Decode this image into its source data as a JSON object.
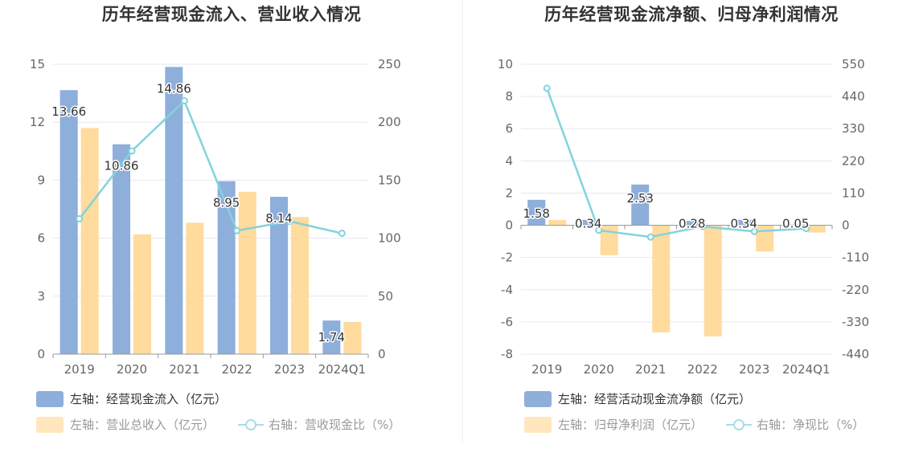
{
  "colors": {
    "bar_blue": "#8eaedb",
    "bar_yellow": "#ffdb9e",
    "line_cyan": "#83d3db",
    "grid": "#e6e8f2",
    "axis": "#999999"
  },
  "chart_data": [
    {
      "type": "bar",
      "title": "历年经营现金流入、营业收入情况",
      "categories": [
        "2019",
        "2020",
        "2021",
        "2022",
        "2023",
        "2024Q1"
      ],
      "left_axis": {
        "min": 0,
        "max": 15,
        "ticks": [
          "0",
          "3",
          "6",
          "9",
          "12",
          "15"
        ]
      },
      "right_axis": {
        "min": 0,
        "max": 250,
        "ticks": [
          "0",
          "50",
          "100",
          "150",
          "200",
          "250"
        ]
      },
      "series": [
        {
          "name": "左轴：经营现金流入（亿元）",
          "kind": "bar",
          "axis": "left",
          "color": "#8eaedb",
          "values": [
            13.66,
            10.86,
            14.86,
            8.95,
            8.14,
            1.74
          ],
          "labels": [
            "13.66",
            "10.86",
            "14.86",
            "8.95",
            "8.14",
            "1.74"
          ]
        },
        {
          "name": "左轴：营业总收入（亿元）",
          "kind": "bar",
          "axis": "left",
          "color": "#ffdb9e",
          "values": [
            11.7,
            6.2,
            6.8,
            8.4,
            7.1,
            1.67
          ]
        },
        {
          "name": "右轴：营收现金比（%）",
          "kind": "line",
          "axis": "right",
          "color": "#83d3db",
          "values": [
            116.7,
            175.2,
            218.5,
            106.5,
            114.6,
            104.2
          ]
        }
      ],
      "grid": true,
      "legend_position": "bottom-left"
    },
    {
      "type": "bar",
      "title": "历年经营现金流净额、归母净利润情况",
      "categories": [
        "2019",
        "2020",
        "2021",
        "2022",
        "2023",
        "2024Q1"
      ],
      "left_axis": {
        "min": -8,
        "max": 10,
        "ticks": [
          "-8",
          "-6",
          "-4",
          "-2",
          "0",
          "2",
          "4",
          "6",
          "8",
          "10"
        ]
      },
      "right_axis": {
        "min": -440,
        "max": 550,
        "ticks": [
          "-440",
          "-330",
          "-220",
          "-110",
          "0",
          "110",
          "220",
          "330",
          "440",
          "550"
        ]
      },
      "series": [
        {
          "name": "左轴：经营活动现金流净额（亿元）",
          "kind": "bar",
          "axis": "left",
          "color": "#8eaedb",
          "values": [
            1.58,
            0.34,
            2.53,
            0.28,
            0.34,
            0.05
          ],
          "labels": [
            "1.58",
            "0.34",
            "2.53",
            "0.28",
            "0.34",
            "0.05"
          ]
        },
        {
          "name": "左轴：归母净利润（亿元）",
          "kind": "bar",
          "axis": "left",
          "color": "#ffdb9e",
          "values": [
            0.33,
            -1.85,
            -6.65,
            -6.9,
            -1.63,
            -0.45
          ]
        },
        {
          "name": "右轴：净现比（%）",
          "kind": "line",
          "axis": "right",
          "color": "#83d3db",
          "values": [
            468,
            -17,
            -40,
            -4,
            -21,
            -11
          ]
        }
      ],
      "grid": true,
      "legend_position": "bottom-left"
    }
  ]
}
